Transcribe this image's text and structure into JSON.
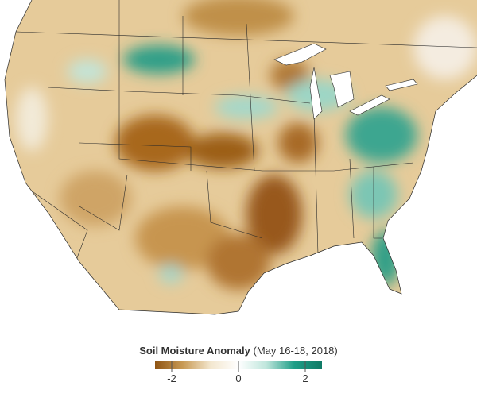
{
  "legend": {
    "title": "Soil Moisture Anomaly",
    "subtitle": "(May 16-18, 2018)",
    "lim": [
      -2.5,
      2.5
    ],
    "ticks": [
      -2,
      0,
      2
    ],
    "colors": [
      "#8f5413",
      "#c89a55",
      "#f3e7cf",
      "#ffffff",
      "#bfe6dc",
      "#1f9e87",
      "#0f7a66"
    ]
  }
}
